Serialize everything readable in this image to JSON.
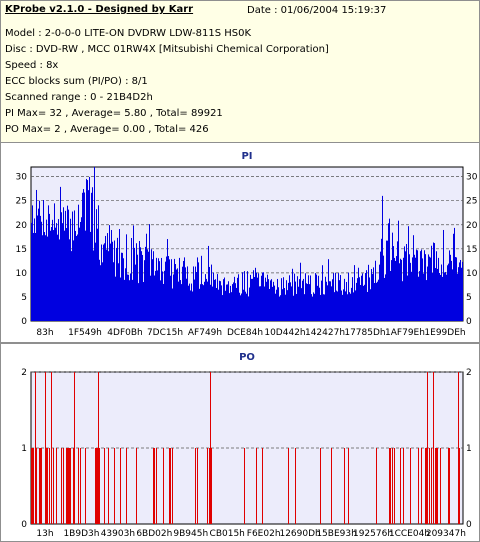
{
  "header": {
    "title": "KProbe v2.1.0 - Designed by Karr",
    "date": "Date : 01/06/2004 15:19:37",
    "lines": [
      "Model : 2-0-0-0 LITE-ON DVDRW LDW-811S   HS0K",
      "Disc : DVD-RW , MCC 01RW4X  [Mitsubishi Chemical Corporation]",
      "Speed : 8x",
      "ECC blocks sum (PI/PO) : 8/1",
      "Scanned range : 0 - 21B4D2h",
      "PI Max= 32 , Average= 5.80 , Total= 89921",
      "PO Max= 2 , Average= 0.00 , Total= 426"
    ]
  },
  "colors": {
    "plot_bg": "#ececfb",
    "pi_bars": "#0000e0",
    "po_bars": "#e00000",
    "info_bg": "#ffffe6"
  },
  "chart_data": [
    {
      "type": "bar",
      "title": "PI",
      "ylim": [
        0,
        32
      ],
      "yticks": [
        "0",
        "5",
        "10",
        "15",
        "20",
        "25",
        "30"
      ],
      "ytick_values": [
        0,
        5,
        10,
        15,
        20,
        25,
        30
      ],
      "xtick_labels": [
        "83h",
        "1F549h",
        "4DF0Bh",
        "7DC15h",
        "AF749h",
        "DCE84h",
        "10D442h",
        "142427h",
        "17785Dh",
        "1AF79Eh",
        "1E99DEh"
      ],
      "grid": true,
      "profile": [
        [
          0,
          18,
          28
        ],
        [
          20,
          16,
          26
        ],
        [
          40,
          14,
          24
        ],
        [
          55,
          18,
          32
        ],
        [
          70,
          10,
          22
        ],
        [
          100,
          8,
          18
        ],
        [
          130,
          7,
          15
        ],
        [
          160,
          6,
          13
        ],
        [
          200,
          5,
          11
        ],
        [
          250,
          5,
          10
        ],
        [
          300,
          5,
          10
        ],
        [
          340,
          6,
          12
        ],
        [
          360,
          8,
          26
        ],
        [
          380,
          8,
          15
        ],
        [
          410,
          9,
          16
        ],
        [
          430,
          9,
          15
        ]
      ]
    },
    {
      "type": "bar",
      "title": "PO",
      "ylim": [
        0,
        2
      ],
      "yticks": [
        "0",
        "1",
        "2"
      ],
      "ytick_values": [
        0,
        1,
        2
      ],
      "xtick_labels": [
        "13h",
        "1B9D3h",
        "43903h",
        "6BD02h",
        "9B945h",
        "CB015h",
        "F6E02h",
        "12690Dh",
        "15BE93h",
        "192576h",
        "1CCE04h",
        "209347h"
      ],
      "grid": true,
      "ones_density": [
        [
          0,
          0.6
        ],
        [
          20,
          0.45
        ],
        [
          50,
          0.35
        ],
        [
          90,
          0.22
        ],
        [
          140,
          0.12
        ],
        [
          190,
          0.12
        ],
        [
          240,
          0.1
        ],
        [
          290,
          0.08
        ],
        [
          330,
          0.08
        ],
        [
          360,
          0.2
        ],
        [
          400,
          0.4
        ],
        [
          432,
          0.5
        ]
      ],
      "twos_at": [
        4,
        14,
        20,
        43,
        67,
        179,
        396,
        402,
        427,
        433
      ]
    }
  ]
}
